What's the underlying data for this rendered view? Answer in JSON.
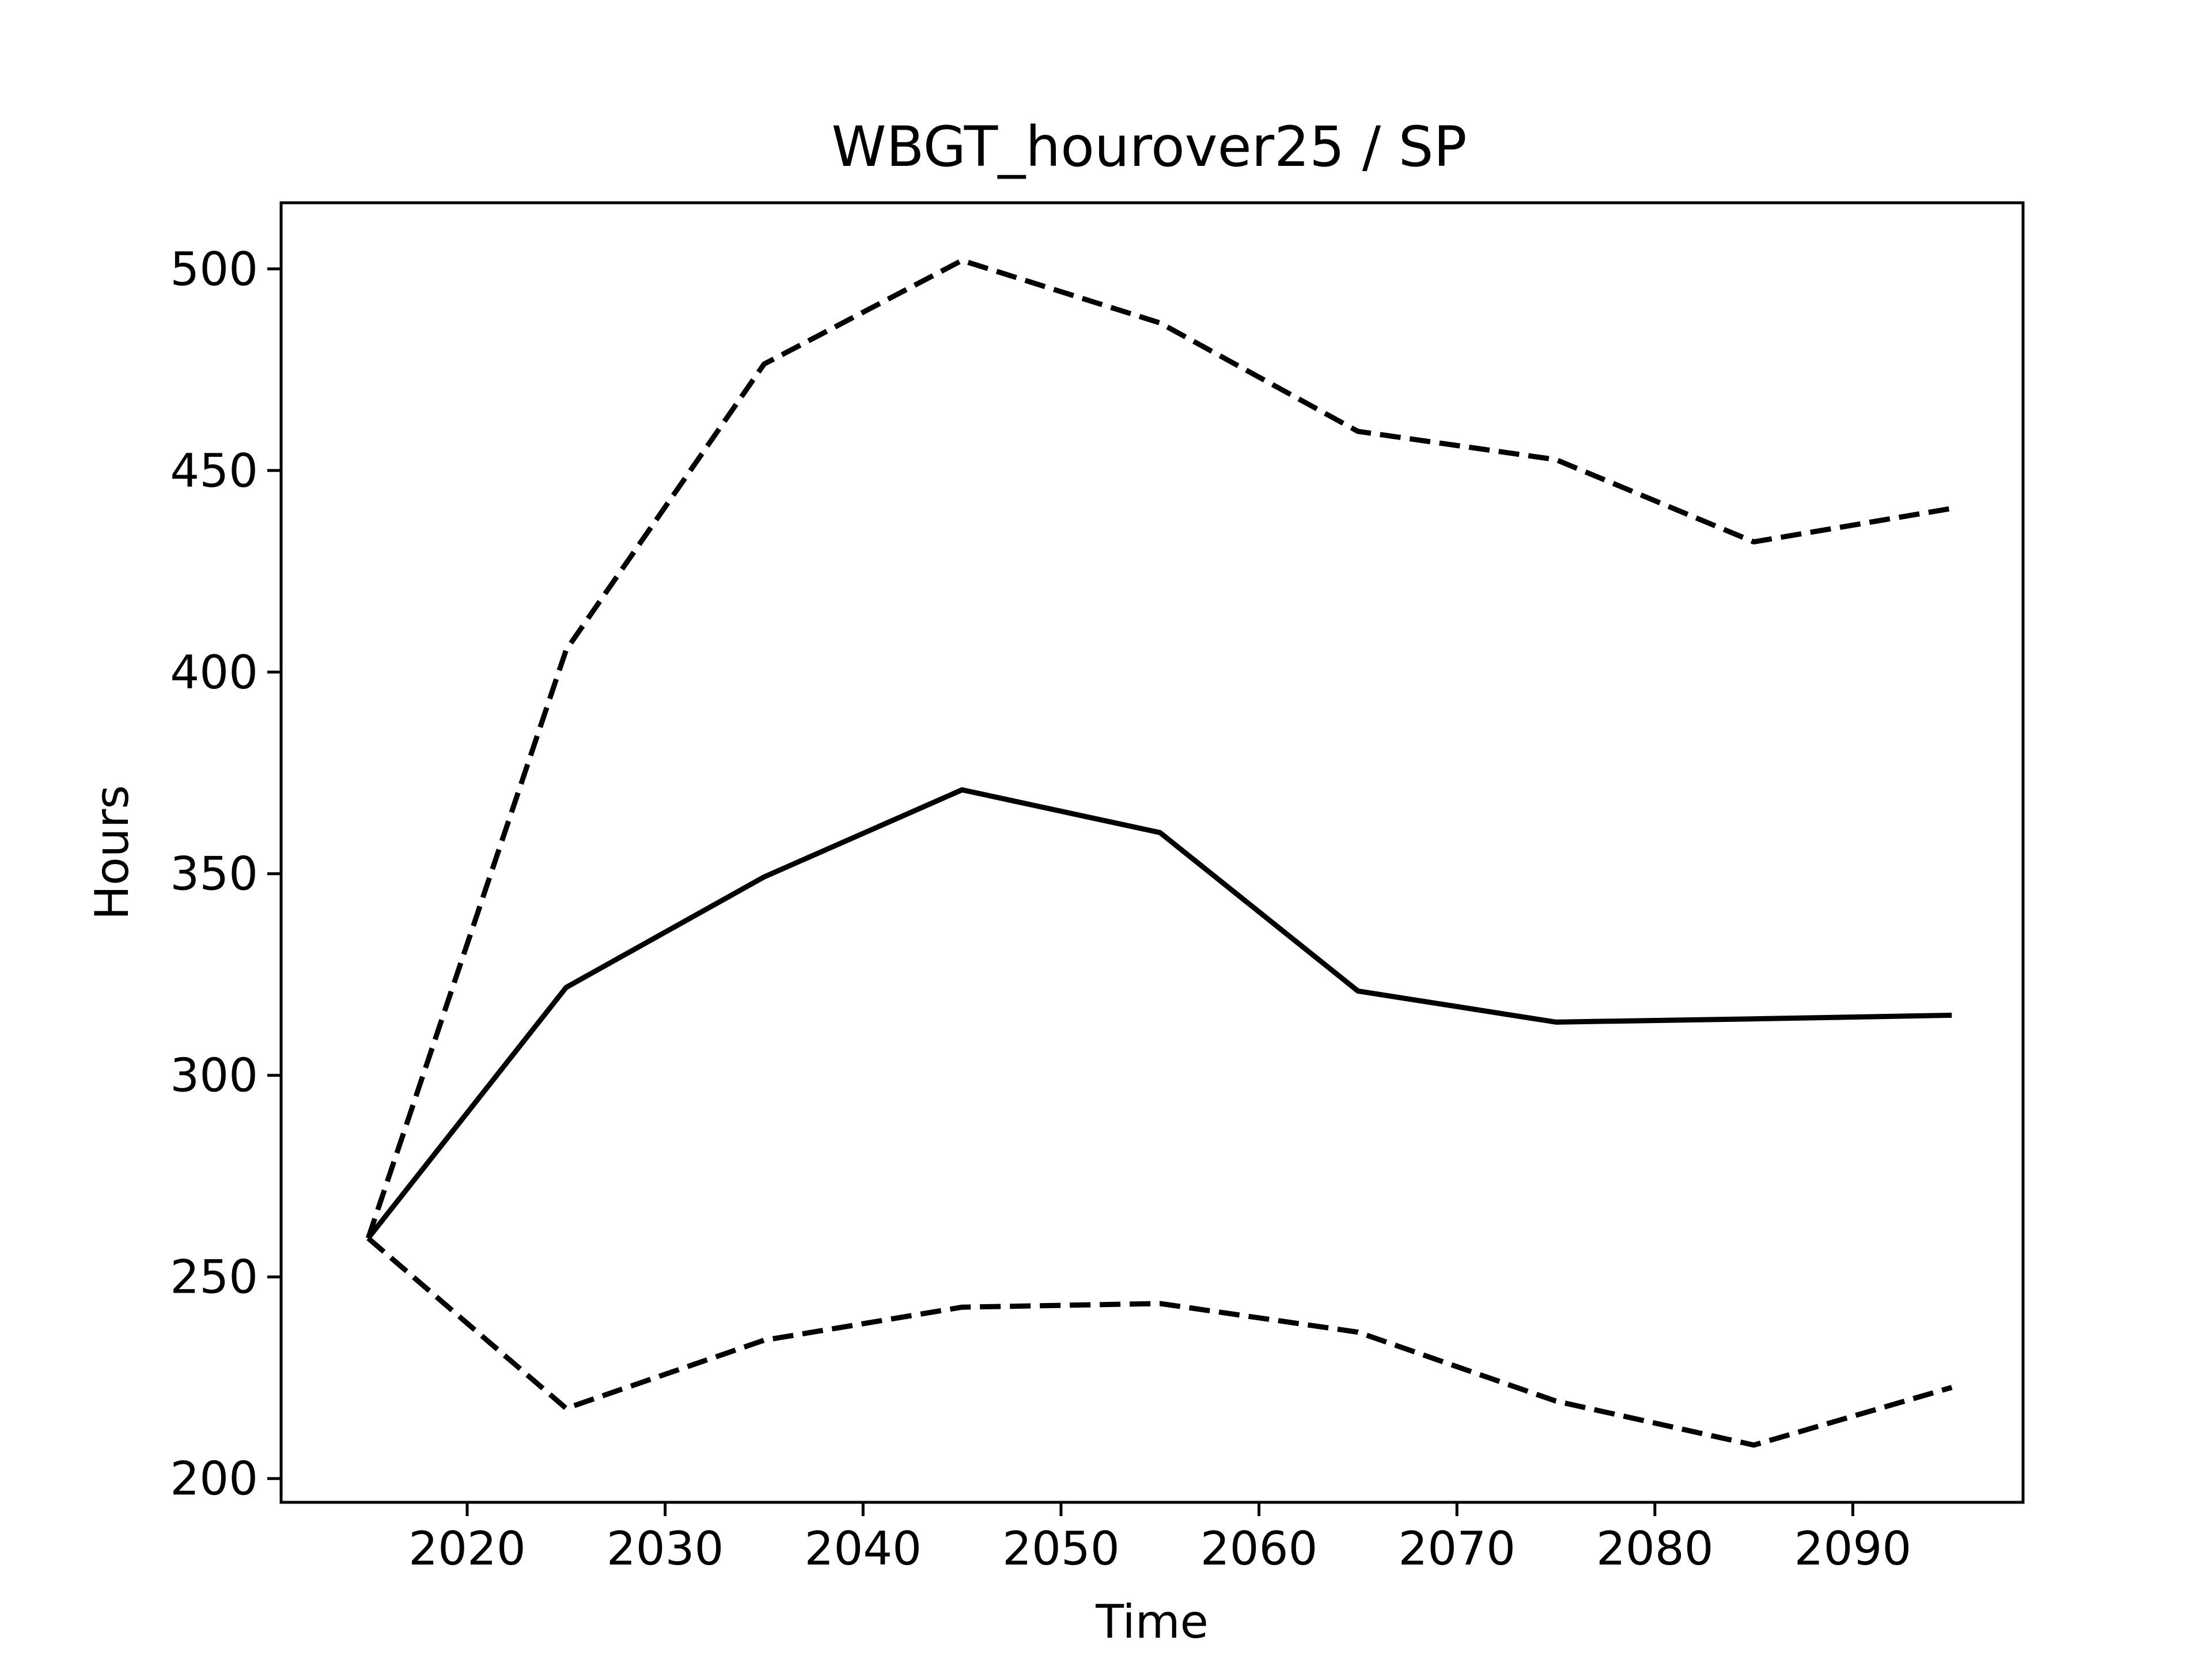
{
  "chart_data": {
    "type": "line",
    "title": "WBGT_hourover25 / SP",
    "xlabel": "Time",
    "ylabel": "Hours",
    "x": [
      2015,
      2025,
      2035,
      2045,
      2055,
      2065,
      2075,
      2085,
      2095
    ],
    "xlim": [
      2010.6,
      2098.6
    ],
    "ylim": [
      194.1,
      516.4
    ],
    "xticks": [
      2020,
      2030,
      2040,
      2050,
      2060,
      2070,
      2080,
      2090
    ],
    "yticks": [
      200,
      250,
      300,
      350,
      400,
      450,
      500
    ],
    "grid": false,
    "legend": "none",
    "series": [
      {
        "style": "solid",
        "color": "#000000",
        "values": [
          259.6,
          321.8,
          349.2,
          370.8,
          360.2,
          320.9,
          313.2,
          314.0,
          314.9
        ]
      },
      {
        "style": "dashed",
        "color": "#000000",
        "values": [
          259.6,
          405.5,
          476.4,
          502.1,
          486.6,
          459.7,
          452.7,
          432.3,
          440.6
        ]
      },
      {
        "style": "dashed",
        "color": "#000000",
        "values": [
          259.6,
          217.4,
          234.3,
          242.5,
          243.4,
          236.3,
          219.2,
          208.3,
          222.6
        ]
      }
    ]
  }
}
